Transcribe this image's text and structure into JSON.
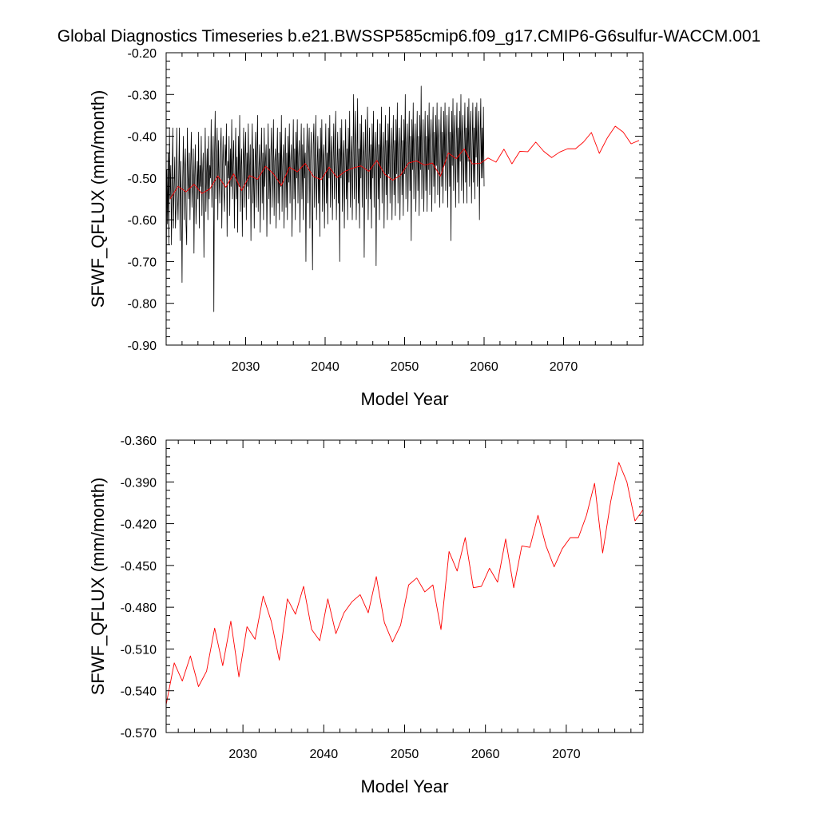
{
  "title": "Global Diagnostics Timeseries b.e21.BWSSP585cmip6.f09_g17.CMIP6-G6sulfur-WACCM.001",
  "colors": {
    "monthly": "#000000",
    "annual": "#ff0000",
    "axes": "#000000",
    "background": "#ffffff"
  },
  "chart_data": [
    {
      "type": "line",
      "xlabel": "Model Year",
      "ylabel": "SFWF_QFLUX (mm/month)",
      "xlim": [
        2020.0,
        2080.0
      ],
      "ylim": [
        -0.9,
        -0.2
      ],
      "xticks": [
        2030,
        2040,
        2050,
        2060,
        2070
      ],
      "xtick_labels": [
        "2030",
        "2040",
        "2050",
        "2060",
        "2070"
      ],
      "yticks": [
        -0.9,
        -0.8,
        -0.7,
        -0.6,
        -0.5,
        -0.4,
        -0.3,
        -0.2
      ],
      "ytick_labels": [
        "-0.90",
        "-0.80",
        "-0.70",
        "-0.60",
        "-0.50",
        "-0.40",
        "-0.30",
        "-0.20"
      ],
      "series": [
        {
          "color": "#000000",
          "x_start": 2020.0,
          "x_step": 0.083333,
          "values": [
            -0.79,
            -0.48,
            -0.61,
            -0.44,
            -0.66,
            -0.38,
            -0.55,
            -0.47,
            -0.66,
            -0.5,
            -0.38,
            -0.62,
            -0.52,
            -0.45,
            -0.62,
            -0.57,
            -0.38,
            -0.54,
            -0.6,
            -0.49,
            -0.38,
            -0.65,
            -0.46,
            -0.55,
            -0.75,
            -0.5,
            -0.4,
            -0.6,
            -0.48,
            -0.43,
            -0.61,
            -0.66,
            -0.38,
            -0.5,
            -0.55,
            -0.44,
            -0.6,
            -0.47,
            -0.39,
            -0.57,
            -0.52,
            -0.43,
            -0.68,
            -0.5,
            -0.42,
            -0.61,
            -0.55,
            -0.46,
            -0.55,
            -0.39,
            -0.62,
            -0.47,
            -0.52,
            -0.4,
            -0.59,
            -0.49,
            -0.44,
            -0.69,
            -0.53,
            -0.38,
            -0.58,
            -0.49,
            -0.43,
            -0.6,
            -0.4,
            -0.55,
            -0.47,
            -0.5,
            -0.36,
            -0.57,
            -0.47,
            -0.4,
            -0.82,
            -0.45,
            -0.34,
            -0.55,
            -0.46,
            -0.38,
            -0.6,
            -0.41,
            -0.5,
            -0.56,
            -0.43,
            -0.38,
            -0.62,
            -0.48,
            -0.4,
            -0.53,
            -0.58,
            -0.42,
            -0.47,
            -0.37,
            -0.64,
            -0.46,
            -0.5,
            -0.4,
            -0.59,
            -0.43,
            -0.52,
            -0.36,
            -0.55,
            -0.46,
            -0.41,
            -0.62,
            -0.49,
            -0.38,
            -0.55,
            -0.45,
            -0.63,
            -0.4,
            -0.52,
            -0.35,
            -0.58,
            -0.47,
            -0.43,
            -0.64,
            -0.48,
            -0.38,
            -0.57,
            -0.45,
            -0.39,
            -0.6,
            -0.44,
            -0.52,
            -0.37,
            -0.55,
            -0.48,
            -0.42,
            -0.65,
            -0.46,
            -0.37,
            -0.56,
            -0.43,
            -0.62,
            -0.48,
            -0.39,
            -0.57,
            -0.45,
            -0.35,
            -0.58,
            -0.48,
            -0.42,
            -0.63,
            -0.47,
            -0.38,
            -0.56,
            -0.44,
            -0.6,
            -0.38,
            -0.52,
            -0.46,
            -0.42,
            -0.64,
            -0.5,
            -0.37,
            -0.55,
            -0.43,
            -0.61,
            -0.45,
            -0.38,
            -0.57,
            -0.48,
            -0.36,
            -0.59,
            -0.46,
            -0.43,
            -0.62,
            -0.47,
            -0.38,
            -0.56,
            -0.44,
            -0.6,
            -0.39,
            -0.52,
            -0.35,
            -0.58,
            -0.47,
            -0.42,
            -0.62,
            -0.46,
            -0.38,
            -0.57,
            -0.44,
            -0.6,
            -0.4,
            -0.51,
            -0.37,
            -0.56,
            -0.46,
            -0.42,
            -0.64,
            -0.48,
            -0.36,
            -0.55,
            -0.43,
            -0.6,
            -0.39,
            -0.5,
            -0.36,
            -0.56,
            -0.45,
            -0.41,
            -0.63,
            -0.47,
            -0.37,
            -0.55,
            -0.42,
            -0.6,
            -0.38,
            -0.5,
            -0.44,
            -0.7,
            -0.45,
            -0.37,
            -0.56,
            -0.44,
            -0.38,
            -0.62,
            -0.46,
            -0.39,
            -0.55,
            -0.72,
            -0.42,
            -0.37,
            -0.57,
            -0.45,
            -0.35,
            -0.6,
            -0.47,
            -0.4,
            -0.56,
            -0.43,
            -0.64,
            -0.38,
            -0.5,
            -0.36,
            -0.58,
            -0.45,
            -0.42,
            -0.62,
            -0.46,
            -0.37,
            -0.56,
            -0.44,
            -0.61,
            -0.38,
            -0.5,
            -0.35,
            -0.57,
            -0.45,
            -0.4,
            -0.6,
            -0.46,
            -0.37,
            -0.55,
            -0.42,
            -0.34,
            -0.6,
            -0.47,
            -0.39,
            -0.56,
            -0.43,
            -0.7,
            -0.38,
            -0.5,
            -0.36,
            -0.58,
            -0.45,
            -0.41,
            -0.62,
            -0.46,
            -0.36,
            -0.55,
            -0.43,
            -0.6,
            -0.38,
            -0.51,
            -0.34,
            -0.57,
            -0.45,
            -0.4,
            -0.6,
            -0.46,
            -0.3,
            -0.55,
            -0.42,
            -0.34,
            -0.6,
            -0.47,
            -0.31,
            -0.56,
            -0.43,
            -0.62,
            -0.37,
            -0.5,
            -0.35,
            -0.57,
            -0.45,
            -0.39,
            -0.69,
            -0.46,
            -0.36,
            -0.55,
            -0.42,
            -0.33,
            -0.6,
            -0.46,
            -0.38,
            -0.55,
            -0.42,
            -0.62,
            -0.37,
            -0.5,
            -0.34,
            -0.57,
            -0.44,
            -0.39,
            -0.71,
            -0.45,
            -0.36,
            -0.55,
            -0.42,
            -0.6,
            -0.37,
            -0.5,
            -0.33,
            -0.56,
            -0.44,
            -0.39,
            -0.62,
            -0.45,
            -0.35,
            -0.54,
            -0.41,
            -0.6,
            -0.37,
            -0.49,
            -0.33,
            -0.56,
            -0.44,
            -0.38,
            -0.6,
            -0.45,
            -0.35,
            -0.54,
            -0.41,
            -0.59,
            -0.36,
            -0.49,
            -0.32,
            -0.56,
            -0.43,
            -0.38,
            -0.6,
            -0.45,
            -0.35,
            -0.54,
            -0.41,
            -0.59,
            -0.36,
            -0.49,
            -0.3,
            -0.55,
            -0.43,
            -0.37,
            -0.58,
            -0.44,
            -0.34,
            -0.53,
            -0.4,
            -0.65,
            -0.36,
            -0.48,
            -0.32,
            -0.55,
            -0.42,
            -0.37,
            -0.58,
            -0.44,
            -0.34,
            -0.53,
            -0.4,
            -0.59,
            -0.35,
            -0.48,
            -0.28,
            -0.55,
            -0.42,
            -0.36,
            -0.58,
            -0.44,
            -0.34,
            -0.53,
            -0.4,
            -0.58,
            -0.35,
            -0.48,
            -0.32,
            -0.54,
            -0.41,
            -0.36,
            -0.58,
            -0.43,
            -0.33,
            -0.52,
            -0.39,
            -0.56,
            -0.35,
            -0.47,
            -0.32,
            -0.54,
            -0.41,
            -0.36,
            -0.57,
            -0.43,
            -0.33,
            -0.52,
            -0.39,
            -0.56,
            -0.34,
            -0.47,
            -0.32,
            -0.53,
            -0.41,
            -0.35,
            -0.57,
            -0.43,
            -0.33,
            -0.52,
            -0.39,
            -0.65,
            -0.34,
            -0.47,
            -0.31,
            -0.53,
            -0.4,
            -0.35,
            -0.57,
            -0.42,
            -0.32,
            -0.51,
            -0.38,
            -0.56,
            -0.34,
            -0.46,
            -0.3,
            -0.53,
            -0.4,
            -0.35,
            -0.56,
            -0.42,
            -0.32,
            -0.51,
            -0.38,
            -0.56,
            -0.33,
            -0.46,
            -0.31,
            -0.52,
            -0.39,
            -0.34,
            -0.56,
            -0.42,
            -0.32,
            -0.51,
            -0.38,
            -0.55,
            -0.33,
            -0.45,
            -0.32,
            -0.52,
            -0.39,
            -0.34,
            -0.6,
            -0.41,
            -0.31,
            -0.5,
            -0.38,
            -0.5,
            -0.33,
            -0.52
          ]
        },
        {
          "color": "#ff0000",
          "x": [
            2020.5,
            2021.5,
            2022.5,
            2023.5,
            2024.5,
            2025.5,
            2026.5,
            2027.5,
            2028.5,
            2029.5,
            2030.5,
            2031.5,
            2032.5,
            2033.5,
            2034.5,
            2035.5,
            2036.5,
            2037.5,
            2038.5,
            2039.5,
            2040.5,
            2041.5,
            2042.5,
            2043.5,
            2044.5,
            2045.5,
            2046.5,
            2047.5,
            2048.5,
            2049.5,
            2050.5,
            2051.5,
            2052.5,
            2053.5,
            2054.5,
            2055.5,
            2056.5,
            2057.5,
            2058.5,
            2059.5,
            2060.5,
            2061.5,
            2062.5,
            2063.5,
            2064.5,
            2065.5,
            2066.5,
            2067.5,
            2068.5,
            2069.5,
            2070.5,
            2071.5,
            2072.5,
            2073.5,
            2074.5,
            2075.5,
            2076.5,
            2077.5,
            2078.5,
            2079.5
          ],
          "values": [
            -0.55,
            -0.52,
            -0.533,
            -0.515,
            -0.537,
            -0.526,
            -0.495,
            -0.522,
            -0.49,
            -0.53,
            -0.494,
            -0.503,
            -0.472,
            -0.49,
            -0.518,
            -0.474,
            -0.485,
            -0.465,
            -0.496,
            -0.504,
            -0.474,
            -0.499,
            -0.484,
            -0.476,
            -0.471,
            -0.484,
            -0.458,
            -0.491,
            -0.505,
            -0.493,
            -0.464,
            -0.459,
            -0.469,
            -0.464,
            -0.496,
            -0.44,
            -0.454,
            -0.43,
            -0.466,
            -0.465,
            -0.452,
            -0.462,
            -0.431,
            -0.466,
            -0.436,
            -0.437,
            -0.414,
            -0.436,
            -0.451,
            -0.438,
            -0.43,
            -0.43,
            -0.414,
            -0.391,
            -0.441,
            -0.404,
            -0.376,
            -0.39,
            -0.418,
            -0.41
          ]
        }
      ]
    },
    {
      "type": "line",
      "xlabel": "Model Year",
      "ylabel": "SFWF_QFLUX (mm/month)",
      "xlim": [
        2020.5,
        2079.5
      ],
      "ylim": [
        -0.57,
        -0.36
      ],
      "xticks": [
        2030,
        2040,
        2050,
        2060,
        2070
      ],
      "xtick_labels": [
        "2030",
        "2040",
        "2050",
        "2060",
        "2070"
      ],
      "yticks": [
        -0.57,
        -0.54,
        -0.51,
        -0.48,
        -0.45,
        -0.42,
        -0.39,
        -0.36
      ],
      "ytick_labels": [
        "-0.570",
        "-0.540",
        "-0.510",
        "-0.480",
        "-0.450",
        "-0.420",
        "-0.390",
        "-0.360"
      ],
      "series": [
        {
          "color": "#ff0000",
          "x": [
            2020.5,
            2021.5,
            2022.5,
            2023.5,
            2024.5,
            2025.5,
            2026.5,
            2027.5,
            2028.5,
            2029.5,
            2030.5,
            2031.5,
            2032.5,
            2033.5,
            2034.5,
            2035.5,
            2036.5,
            2037.5,
            2038.5,
            2039.5,
            2040.5,
            2041.5,
            2042.5,
            2043.5,
            2044.5,
            2045.5,
            2046.5,
            2047.5,
            2048.5,
            2049.5,
            2050.5,
            2051.5,
            2052.5,
            2053.5,
            2054.5,
            2055.5,
            2056.5,
            2057.5,
            2058.5,
            2059.5,
            2060.5,
            2061.5,
            2062.5,
            2063.5,
            2064.5,
            2065.5,
            2066.5,
            2067.5,
            2068.5,
            2069.5,
            2070.5,
            2071.5,
            2072.5,
            2073.5,
            2074.5,
            2075.5,
            2076.5,
            2077.5,
            2078.5,
            2079.5
          ],
          "values": [
            -0.55,
            -0.52,
            -0.533,
            -0.515,
            -0.537,
            -0.526,
            -0.495,
            -0.522,
            -0.49,
            -0.53,
            -0.494,
            -0.503,
            -0.472,
            -0.49,
            -0.518,
            -0.474,
            -0.485,
            -0.465,
            -0.496,
            -0.504,
            -0.474,
            -0.499,
            -0.484,
            -0.476,
            -0.471,
            -0.484,
            -0.458,
            -0.491,
            -0.505,
            -0.493,
            -0.464,
            -0.459,
            -0.469,
            -0.464,
            -0.496,
            -0.44,
            -0.454,
            -0.43,
            -0.466,
            -0.465,
            -0.452,
            -0.462,
            -0.431,
            -0.466,
            -0.436,
            -0.437,
            -0.414,
            -0.436,
            -0.451,
            -0.438,
            -0.43,
            -0.43,
            -0.414,
            -0.391,
            -0.441,
            -0.404,
            -0.376,
            -0.39,
            -0.418,
            -0.41
          ]
        }
      ]
    }
  ]
}
